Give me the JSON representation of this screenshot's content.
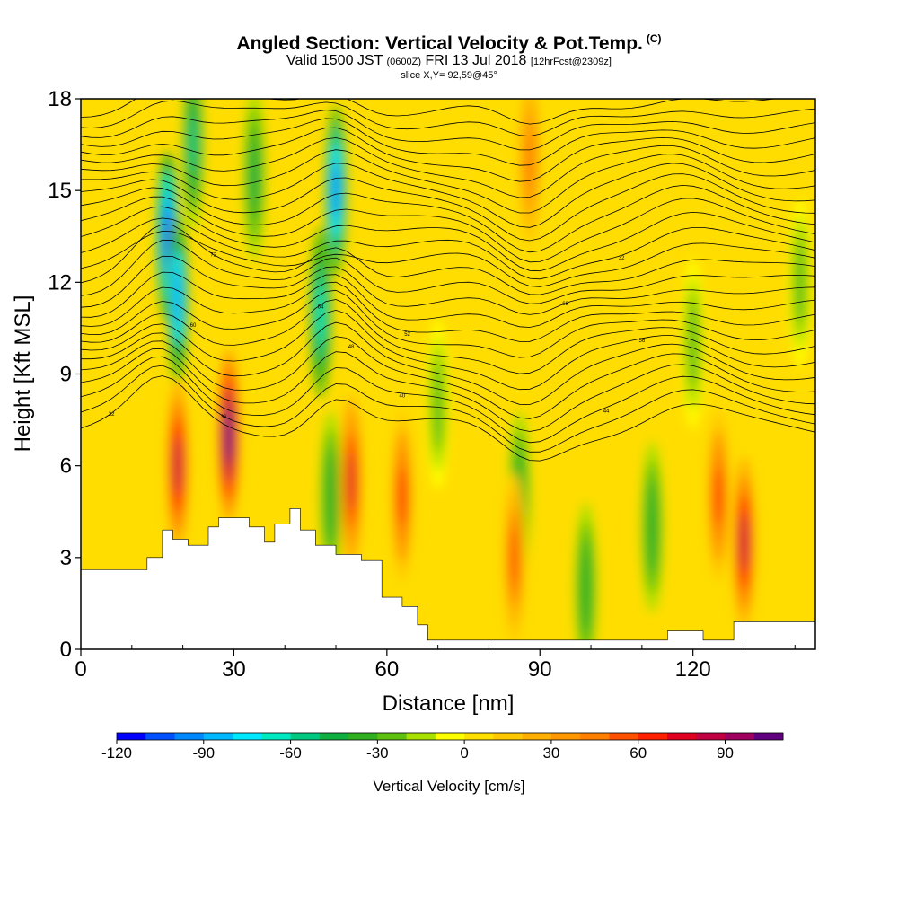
{
  "title": {
    "main": "Angled Section: Vertical Velocity & Pot.Temp.",
    "units": "(C)",
    "valid_prefix": "Valid 1500 JST",
    "valid_utc": "(0600Z)",
    "valid_date": "FRI 13 Jul 2018",
    "forecast": "[12hrFcst@2309z]",
    "slice": "slice X,Y= 92,59@45°"
  },
  "chart_data": {
    "type": "heatmap",
    "xlabel": "Distance [nm]",
    "ylabel": "Height [Kft MSL]",
    "xlim": [
      0,
      144
    ],
    "ylim": [
      0,
      18
    ],
    "x_ticks": [
      0,
      30,
      60,
      90,
      120
    ],
    "y_ticks": [
      0,
      3,
      6,
      9,
      12,
      15,
      18
    ],
    "colorbar": {
      "label": "Vertical Velocity [cm/s]",
      "min": -120,
      "max": 110,
      "step": 10,
      "ticks": [
        -120,
        -90,
        -60,
        -30,
        0,
        30,
        60,
        90
      ],
      "colors": [
        "#0000ff",
        "#0050ff",
        "#0088ff",
        "#00b8ff",
        "#00e8ff",
        "#00e8c0",
        "#00c880",
        "#10b040",
        "#30b020",
        "#60c010",
        "#a8e000",
        "#ffff00",
        "#ffe000",
        "#ffc800",
        "#ffb000",
        "#ff9800",
        "#ff8000",
        "#ff5000",
        "#ff2000",
        "#e00020",
        "#c00040",
        "#a00060",
        "#600080"
      ]
    },
    "vertical_velocity_features": [
      {
        "x": 17,
        "z": 13.5,
        "w": -110
      },
      {
        "x": 19,
        "z": 11.5,
        "w": -90
      },
      {
        "x": 22,
        "z": 16.5,
        "w": -60
      },
      {
        "x": 34,
        "z": 15.5,
        "w": -50
      },
      {
        "x": 50,
        "z": 15.0,
        "w": -100
      },
      {
        "x": 47,
        "z": 11.0,
        "w": -70
      },
      {
        "x": 49,
        "z": 5.0,
        "w": -40
      },
      {
        "x": 70,
        "z": 8.0,
        "w": -30
      },
      {
        "x": 86,
        "z": 5.0,
        "w": -40
      },
      {
        "x": 99,
        "z": 2.0,
        "w": -40
      },
      {
        "x": 112,
        "z": 4.0,
        "w": -40
      },
      {
        "x": 120,
        "z": 10.0,
        "w": -30
      },
      {
        "x": 141,
        "z": 12.0,
        "w": -30
      },
      {
        "x": 19,
        "z": 6.0,
        "w": 80
      },
      {
        "x": 29,
        "z": 7.0,
        "w": 100
      },
      {
        "x": 53,
        "z": 5.5,
        "w": 70
      },
      {
        "x": 63,
        "z": 5.0,
        "w": 60
      },
      {
        "x": 85,
        "z": 3.0,
        "w": 50
      },
      {
        "x": 88,
        "z": 16.0,
        "w": 40
      },
      {
        "x": 125,
        "z": 5.0,
        "w": 60
      },
      {
        "x": 130,
        "z": 3.5,
        "w": 80
      }
    ],
    "potential_temperature_contour_labels": [
      "32",
      "36",
      "40",
      "44",
      "48",
      "52",
      "56",
      "60",
      "64",
      "68",
      "72"
    ],
    "terrain_heights_kft": [
      {
        "x": 0,
        "z": 2.6
      },
      {
        "x": 10,
        "z": 2.6
      },
      {
        "x": 13,
        "z": 3.0
      },
      {
        "x": 16,
        "z": 3.9
      },
      {
        "x": 18,
        "z": 3.6
      },
      {
        "x": 21,
        "z": 3.4
      },
      {
        "x": 25,
        "z": 4.0
      },
      {
        "x": 27,
        "z": 4.3
      },
      {
        "x": 33,
        "z": 4.0
      },
      {
        "x": 36,
        "z": 3.5
      },
      {
        "x": 38,
        "z": 4.1
      },
      {
        "x": 41,
        "z": 4.6
      },
      {
        "x": 43,
        "z": 3.9
      },
      {
        "x": 46,
        "z": 3.4
      },
      {
        "x": 50,
        "z": 3.1
      },
      {
        "x": 55,
        "z": 2.9
      },
      {
        "x": 59,
        "z": 1.7
      },
      {
        "x": 63,
        "z": 1.4
      },
      {
        "x": 66,
        "z": 0.8
      },
      {
        "x": 68,
        "z": 0.3
      },
      {
        "x": 96,
        "z": 0.3
      },
      {
        "x": 108,
        "z": 0.3
      },
      {
        "x": 115,
        "z": 0.6
      },
      {
        "x": 122,
        "z": 0.3
      },
      {
        "x": 128,
        "z": 0.9
      },
      {
        "x": 138,
        "z": 0.9
      },
      {
        "x": 144,
        "z": 1.3
      }
    ]
  }
}
